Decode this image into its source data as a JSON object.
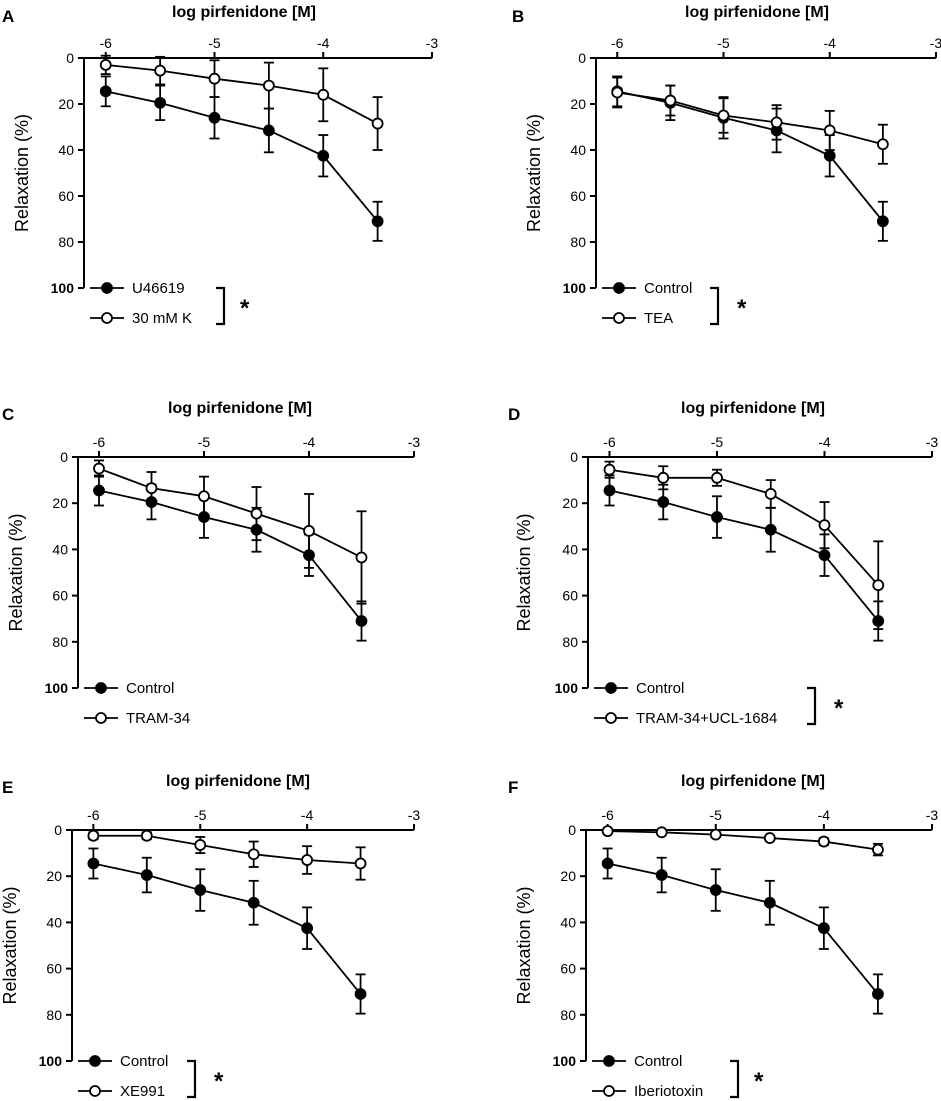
{
  "figure": {
    "panels": [
      "A",
      "B",
      "C",
      "D",
      "E",
      "F"
    ]
  },
  "chart_data": [
    {
      "panel": "A",
      "type": "line",
      "xlabel": "log pirfenidone [M]",
      "ylabel": "Relaxation (%)",
      "xlim": [
        -6.2,
        -3
      ],
      "ylim": [
        0,
        100
      ],
      "y_inverted": true,
      "xticks": [
        -6,
        -5,
        -4,
        -3
      ],
      "xtick_labels": [
        "-6",
        "-5",
        "-4",
        "-3"
      ],
      "yticks": [
        0,
        20,
        40,
        60,
        80,
        100
      ],
      "ytick_labels": [
        "0",
        "20",
        "40",
        "60",
        "80",
        "100"
      ],
      "legend_position": "bottom-left",
      "significance_marker": "*",
      "series": [
        {
          "name": "U46619",
          "marker": "filled-circle",
          "x": [
            -6,
            -5.5,
            -5,
            -4.5,
            -4,
            -3.5
          ],
          "y": [
            14.5,
            19.5,
            26,
            31.5,
            42.5,
            71
          ],
          "err": [
            6.5,
            7.5,
            9,
            9.5,
            9,
            8.5
          ]
        },
        {
          "name": "30 mM K",
          "marker": "open-circle",
          "x": [
            -6,
            -5.5,
            -5,
            -4.5,
            -4,
            -3.5
          ],
          "y": [
            3,
            5.5,
            9,
            12,
            16,
            28.5
          ],
          "err": [
            4,
            6,
            8,
            10,
            11.5,
            11.5
          ]
        }
      ]
    },
    {
      "panel": "B",
      "type": "line",
      "xlabel": "log pirfenidone [M]",
      "ylabel": "Relaxation (%)",
      "xlim": [
        -6.2,
        -3
      ],
      "ylim": [
        0,
        100
      ],
      "y_inverted": true,
      "xticks": [
        -6,
        -5,
        -4,
        -3
      ],
      "xtick_labels": [
        "-6",
        "-5",
        "-4",
        "-3"
      ],
      "yticks": [
        0,
        20,
        40,
        60,
        80,
        100
      ],
      "ytick_labels": [
        "0",
        "20",
        "40",
        "60",
        "80",
        "100"
      ],
      "legend_position": "bottom-left",
      "significance_marker": "*",
      "series": [
        {
          "name": "Control",
          "marker": "filled-circle",
          "x": [
            -6,
            -5.5,
            -5,
            -4.5,
            -4,
            -3.5
          ],
          "y": [
            14.5,
            19.5,
            26,
            31.5,
            42.5,
            71
          ],
          "err": [
            6.5,
            7.5,
            9,
            9.5,
            9,
            8.5
          ]
        },
        {
          "name": "TEA",
          "marker": "open-circle",
          "x": [
            -6,
            -5.5,
            -5,
            -4.5,
            -4,
            -3.5
          ],
          "y": [
            15,
            18.5,
            25,
            28,
            31.5,
            37.5
          ],
          "err": [
            6.5,
            6.5,
            7.5,
            7.5,
            8.5,
            8.5
          ]
        }
      ]
    },
    {
      "panel": "C",
      "type": "line",
      "xlabel": "log pirfenidone [M]",
      "ylabel": "Relaxation (%)",
      "xlim": [
        -6.2,
        -3
      ],
      "ylim": [
        0,
        100
      ],
      "y_inverted": true,
      "xticks": [
        -6,
        -5,
        -4,
        -3
      ],
      "xtick_labels": [
        "-6",
        "-5",
        "-4",
        "-3"
      ],
      "yticks": [
        0,
        20,
        40,
        60,
        80,
        100
      ],
      "ytick_labels": [
        "0",
        "20",
        "40",
        "60",
        "80",
        "100"
      ],
      "legend_position": "bottom-left",
      "significance_marker": "",
      "series": [
        {
          "name": "Control",
          "marker": "filled-circle",
          "x": [
            -6,
            -5.5,
            -5,
            -4.5,
            -4,
            -3.5
          ],
          "y": [
            14.5,
            19.5,
            26,
            31.5,
            42.5,
            71
          ],
          "err": [
            6.5,
            7.5,
            9,
            9.5,
            9,
            8.5
          ]
        },
        {
          "name": "TRAM-34",
          "marker": "open-circle",
          "x": [
            -6,
            -5.5,
            -5,
            -4.5,
            -4,
            -3.5
          ],
          "y": [
            5,
            13.5,
            17,
            24.5,
            32,
            43.5
          ],
          "err": [
            3.5,
            7,
            8.5,
            11.5,
            16,
            20
          ]
        }
      ]
    },
    {
      "panel": "D",
      "type": "line",
      "xlabel": "log pirfenidone [M]",
      "ylabel": "Relaxation (%)",
      "xlim": [
        -6.2,
        -3
      ],
      "ylim": [
        0,
        100
      ],
      "y_inverted": true,
      "xticks": [
        -6,
        -5,
        -4,
        -3
      ],
      "xtick_labels": [
        "-6",
        "-5",
        "-4",
        "-3"
      ],
      "yticks": [
        0,
        20,
        40,
        60,
        80,
        100
      ],
      "ytick_labels": [
        "0",
        "20",
        "40",
        "60",
        "80",
        "100"
      ],
      "legend_position": "bottom-left",
      "significance_marker": "*",
      "series": [
        {
          "name": "Control",
          "marker": "filled-circle",
          "x": [
            -6,
            -5.5,
            -5,
            -4.5,
            -4,
            -3.5
          ],
          "y": [
            14.5,
            19.5,
            26,
            31.5,
            42.5,
            71
          ],
          "err": [
            6.5,
            7.5,
            9,
            9.5,
            9,
            8.5
          ]
        },
        {
          "name": "TRAM-34+UCL-1684",
          "marker": "open-circle",
          "x": [
            -6,
            -5.5,
            -5,
            -4.5,
            -4,
            -3.5
          ],
          "y": [
            5.5,
            9,
            9,
            16,
            29.5,
            55.5
          ],
          "err": [
            3.5,
            5,
            3.5,
            6,
            10,
            19
          ]
        }
      ]
    },
    {
      "panel": "E",
      "type": "line",
      "xlabel": "log pirfenidone [M]",
      "ylabel": "Relaxation (%)",
      "xlim": [
        -6.2,
        -3
      ],
      "ylim": [
        0,
        100
      ],
      "y_inverted": true,
      "xticks": [
        -6,
        -5,
        -4,
        -3
      ],
      "xtick_labels": [
        "-6",
        "-5",
        "-4",
        "-3"
      ],
      "yticks": [
        0,
        20,
        40,
        60,
        80,
        100
      ],
      "ytick_labels": [
        "0",
        "20",
        "40",
        "60",
        "80",
        "100"
      ],
      "legend_position": "bottom-left",
      "significance_marker": "*",
      "series": [
        {
          "name": "Control",
          "marker": "filled-circle",
          "x": [
            -6,
            -5.5,
            -5,
            -4.5,
            -4,
            -3.5
          ],
          "y": [
            14.5,
            19.5,
            26,
            31.5,
            42.5,
            71
          ],
          "err": [
            6.5,
            7.5,
            9,
            9.5,
            9,
            8.5
          ]
        },
        {
          "name": "XE991",
          "marker": "open-circle",
          "x": [
            -6,
            -5.5,
            -5,
            -4.5,
            -4,
            -3.5
          ],
          "y": [
            2.5,
            2.5,
            6.5,
            10.5,
            13,
            14.5
          ],
          "err": [
            1.5,
            1.5,
            3.5,
            5.5,
            6,
            7
          ]
        }
      ]
    },
    {
      "panel": "F",
      "type": "line",
      "xlabel": "log pirfenidone [M]",
      "ylabel": "Relaxation (%)",
      "xlim": [
        -6.2,
        -3
      ],
      "ylim": [
        0,
        100
      ],
      "y_inverted": true,
      "xticks": [
        -6,
        -5,
        -4,
        -3
      ],
      "xtick_labels": [
        "-6",
        "-5",
        "-4",
        "-3"
      ],
      "yticks": [
        0,
        20,
        40,
        60,
        80,
        100
      ],
      "ytick_labels": [
        "0",
        "20",
        "40",
        "60",
        "80",
        "100"
      ],
      "legend_position": "bottom-left",
      "significance_marker": "*",
      "series": [
        {
          "name": "Control",
          "marker": "filled-circle",
          "x": [
            -6,
            -5.5,
            -5,
            -4.5,
            -4,
            -3.5
          ],
          "y": [
            14.5,
            19.5,
            26,
            31.5,
            42.5,
            71
          ],
          "err": [
            6.5,
            7.5,
            9,
            9.5,
            9,
            8.5
          ]
        },
        {
          "name": "Iberiotoxin",
          "marker": "open-circle",
          "x": [
            -6,
            -5.5,
            -5,
            -4.5,
            -4,
            -3.5
          ],
          "y": [
            0.5,
            1,
            2,
            3.5,
            5,
            8.5
          ],
          "err": [
            0.5,
            0.5,
            1,
            1,
            1.5,
            2.5
          ]
        }
      ]
    }
  ]
}
